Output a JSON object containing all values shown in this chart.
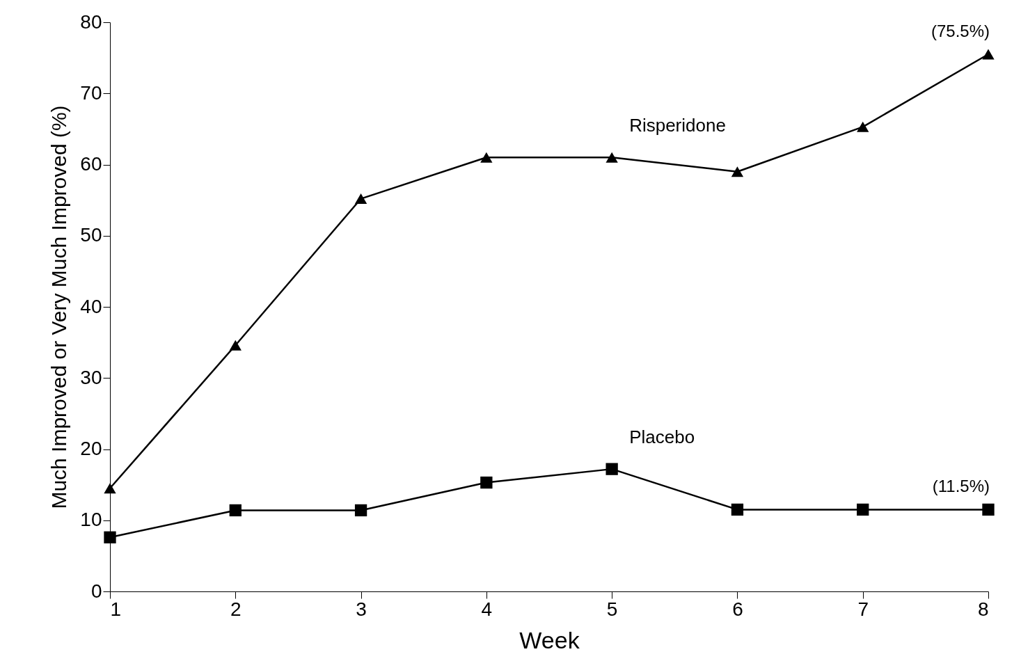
{
  "chart_data": {
    "type": "line",
    "xlabel": "Week",
    "ylabel": "Much Improved or Very Much Improved (%)",
    "x": [
      1,
      2,
      3,
      4,
      5,
      6,
      7,
      8
    ],
    "series": [
      {
        "name": "Risperidone",
        "color": "#000000",
        "marker": "triangle",
        "values": [
          14.5,
          34.6,
          55.2,
          61,
          61,
          59,
          65.3,
          75.5
        ]
      },
      {
        "name": "Placebo",
        "color": "#000000",
        "marker": "square",
        "values": [
          7.6,
          11.4,
          11.4,
          15.3,
          17.2,
          11.5,
          11.5,
          11.5
        ]
      }
    ],
    "xlim": [
      1,
      8
    ],
    "xticks": [
      1,
      2,
      3,
      4,
      5,
      6,
      7,
      8
    ],
    "ylim": [
      0,
      80
    ],
    "yticks": [
      0,
      10,
      20,
      30,
      40,
      50,
      60,
      70,
      80
    ],
    "grid": false,
    "line_style": "solid",
    "annotations": [
      {
        "text": "(75.5%)",
        "x": 8,
        "y": 75.5
      },
      {
        "text": "(11.5%)",
        "x": 8,
        "y": 11.5
      }
    ]
  }
}
